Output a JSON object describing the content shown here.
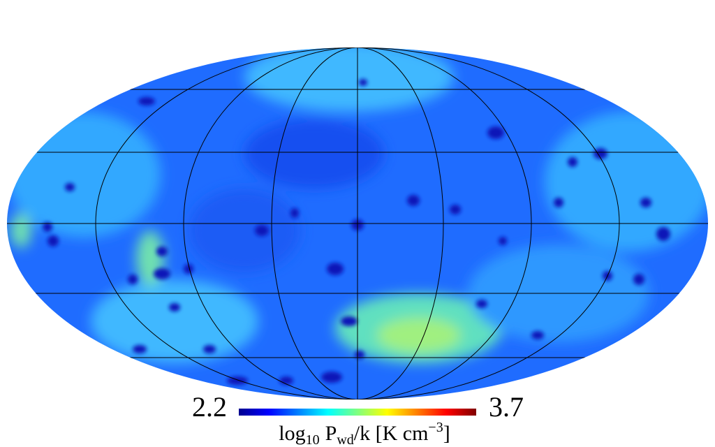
{
  "map": {
    "projection": "mollweide",
    "colorbar": {
      "min": 2.2,
      "max": 3.7,
      "label": {
        "log": "log",
        "log_sub": "10",
        "p": "P",
        "p_sub": "wd",
        "rest": "/k [K cm",
        "exp": "−3",
        "end": "]"
      }
    }
  }
}
